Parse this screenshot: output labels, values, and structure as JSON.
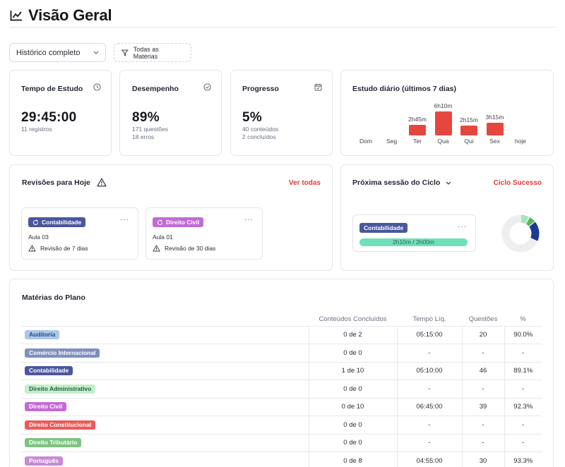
{
  "header": {
    "title": "Visão Geral",
    "icon": "chart-line-icon"
  },
  "filters": {
    "period": "Histórico completo",
    "subjects": "Todas as Matérias"
  },
  "stats": {
    "tempo": {
      "label": "Tempo de Estudo",
      "value": "29:45:00",
      "sub1": "11 registros",
      "icon": "clock-icon"
    },
    "desempenho": {
      "label": "Desempenho",
      "value": "89%",
      "sub1": "171 questões",
      "sub2": "18 erros",
      "icon": "check-circle-icon"
    },
    "progresso": {
      "label": "Progresso",
      "value": "5%",
      "sub1": "40 conteúdos",
      "sub2": "2 concluídos",
      "icon": "calendar-check-icon"
    }
  },
  "daily": {
    "title": "Estudo diário (últimos 7 dias)",
    "days": [
      {
        "day": "Dom",
        "label": "",
        "minutes": 0
      },
      {
        "day": "Seg",
        "label": "",
        "minutes": 0
      },
      {
        "day": "Ter",
        "label": "2h45m",
        "minutes": 165
      },
      {
        "day": "Qua",
        "label": "6h10m",
        "minutes": 370
      },
      {
        "day": "Qui",
        "label": "2h15m",
        "minutes": 135
      },
      {
        "day": "Sex",
        "label": "3h15m",
        "minutes": 195
      },
      {
        "day": "hoje",
        "label": "",
        "minutes": 0
      }
    ],
    "bar_color": "#e5473f"
  },
  "reviews": {
    "title": "Revisões para Hoje",
    "link": "Ver todas",
    "items": [
      {
        "subject": "Contabilidade",
        "color": "#4a569d",
        "lesson": "Aula 03",
        "note": "Revisão de 7 dias"
      },
      {
        "subject": "Direito Civil",
        "color": "#c26ad6",
        "lesson": "Aula 01",
        "note": "Revisão de 30 dias"
      }
    ]
  },
  "cycle": {
    "title": "Próxima sessão do Ciclo",
    "link": "Ciclo Sucesso",
    "subject": "Contabilidade",
    "subject_color": "#4a569d",
    "progress_text": "2h10m / 2h00m",
    "progress": 1.0,
    "donut": [
      {
        "color": "#a6e3c2",
        "value": 8
      },
      {
        "color": "#5cb85c",
        "value": 6
      },
      {
        "color": "#1f3a93",
        "value": 18
      },
      {
        "color": "#eeeeef",
        "value": 68
      }
    ]
  },
  "plan": {
    "title": "Matérias do Plano",
    "columns": [
      "Conteúdos Concluídos",
      "Tempo Líq.",
      "Questões",
      "%"
    ],
    "rows": [
      {
        "name": "Auditoria",
        "bg": "#a9c8ea",
        "fg": "#2f4a72",
        "done": "0 de 2",
        "time": "05:15:00",
        "q": "20",
        "pct": "90.0%"
      },
      {
        "name": "Comércio Internacional",
        "bg": "#7f8fbf",
        "fg": "#ffffff",
        "done": "0 de 0",
        "time": "-",
        "q": "-",
        "pct": "-"
      },
      {
        "name": "Contabilidade",
        "bg": "#4a569d",
        "fg": "#ffffff",
        "done": "1 de 10",
        "time": "05:10:00",
        "q": "46",
        "pct": "89.1%"
      },
      {
        "name": "Direito Administrativo",
        "bg": "#c4eecf",
        "fg": "#2b5b37",
        "done": "0 de 0",
        "time": "-",
        "q": "-",
        "pct": "-"
      },
      {
        "name": "Direito Civil",
        "bg": "#c26ad6",
        "fg": "#ffffff",
        "done": "0 de 10",
        "time": "06:45:00",
        "q": "39",
        "pct": "92.3%"
      },
      {
        "name": "Direito Constitucional",
        "bg": "#ea5a5a",
        "fg": "#ffffff",
        "done": "0 de 0",
        "time": "-",
        "q": "-",
        "pct": "-"
      },
      {
        "name": "Direito Tributário",
        "bg": "#7cc47f",
        "fg": "#ffffff",
        "done": "0 de 0",
        "time": "-",
        "q": "-",
        "pct": "-"
      },
      {
        "name": "Português",
        "bg": "#c889d6",
        "fg": "#ffffff",
        "done": "0 de 8",
        "time": "04:55:00",
        "q": "30",
        "pct": "93.3%"
      }
    ]
  }
}
